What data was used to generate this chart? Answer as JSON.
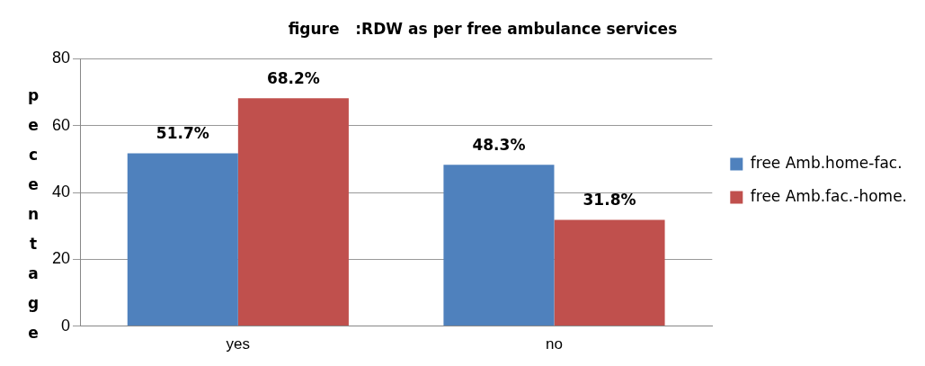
{
  "chart_data": {
    "type": "bar",
    "title": "figure   :RDW as per free ambulance services",
    "ylabel": "pecentage",
    "categories": [
      "yes",
      "no"
    ],
    "series": [
      {
        "name": "free Amb.home-fac.",
        "color": "#4f81bd",
        "values": [
          51.7,
          48.3
        ],
        "value_labels": [
          "51.7%",
          "48.3%"
        ]
      },
      {
        "name": "free Amb.fac.-home.",
        "color": "#c0504d",
        "values": [
          68.2,
          31.8
        ],
        "value_labels": [
          "68.2%",
          "31.8%"
        ]
      }
    ],
    "ylim": [
      0,
      80
    ],
    "yticks": [
      0,
      20,
      40,
      60,
      80
    ],
    "grid": "y",
    "legend": "right"
  }
}
